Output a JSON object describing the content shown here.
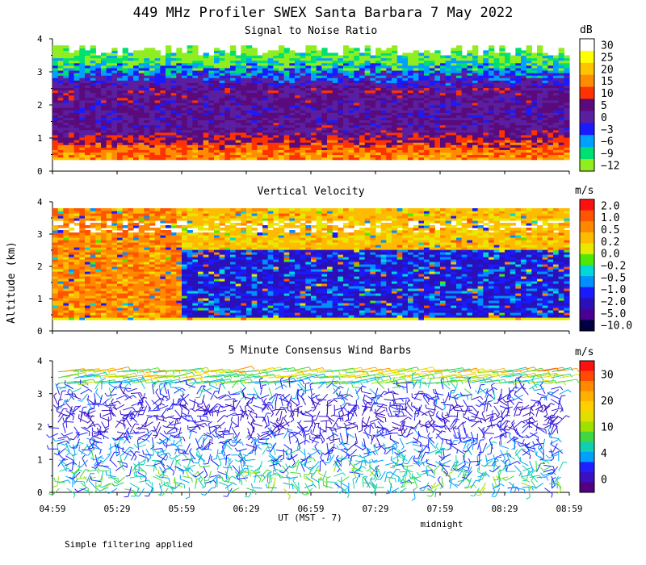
{
  "figure": {
    "title": "449 MHz Profiler SWEX Santa Barbara  7 May 2022",
    "ylabel": "Altitude (km)",
    "xlabel": "UT  (MST - 7)",
    "x_ticks": [
      "04:59",
      "05:29",
      "05:59",
      "06:29",
      "06:59",
      "07:29",
      "07:59",
      "08:29",
      "08:59"
    ],
    "midnight_label": "midnight",
    "footnote": "Simple filtering applied"
  },
  "chart_data": [
    {
      "type": "heatmap",
      "title": "Signal to Noise Ratio",
      "units": "dB",
      "y_ticks": [
        "0",
        "1",
        "2",
        "3",
        "4"
      ],
      "ylim": [
        0,
        4
      ],
      "data_range_km": [
        0.35,
        3.8
      ],
      "x_range": [
        "04:59",
        "08:59"
      ],
      "colorbar": {
        "labels": [
          "30",
          "25",
          "20",
          "15",
          "10",
          "5",
          "0",
          "−3",
          "−6",
          "−9",
          "−12"
        ],
        "colors": [
          "#ffffff",
          "#ffff00",
          "#ffc400",
          "#ff8c00",
          "#ff3300",
          "#5a0a7a",
          "#5a1fa0",
          "#1a1aff",
          "#00a0ff",
          "#00e070",
          "#90ee20"
        ]
      },
      "profile": [
        {
          "alt_km": 0.4,
          "value_db": 18
        },
        {
          "alt_km": 0.8,
          "value_db": 12
        },
        {
          "alt_km": 1.2,
          "value_db": 5
        },
        {
          "alt_km": 1.8,
          "value_db": 4
        },
        {
          "alt_km": 2.4,
          "value_db": 6
        },
        {
          "alt_km": 2.9,
          "value_db": -3
        },
        {
          "alt_km": 3.3,
          "value_db": -9
        },
        {
          "alt_km": 3.7,
          "value_db": -12
        }
      ]
    },
    {
      "type": "heatmap",
      "title": "Vertical Velocity",
      "units": "m/s",
      "y_ticks": [
        "0",
        "1",
        "2",
        "3",
        "4"
      ],
      "ylim": [
        0,
        4
      ],
      "data_range_km": [
        0.35,
        3.8
      ],
      "x_range": [
        "04:59",
        "08:59"
      ],
      "colorbar": {
        "labels": [
          "2.0",
          "1.0",
          "0.5",
          "0.2",
          "0.0",
          "−0.2",
          "−0.5",
          "−1.0",
          "−2.0",
          "−5.0",
          "−10.0"
        ],
        "colors": [
          "#ff1010",
          "#ff5500",
          "#ff8800",
          "#ffbb00",
          "#e8e800",
          "#50e800",
          "#00d8d8",
          "#0090ff",
          "#1a1aff",
          "#2a10b8",
          "#4a0090",
          "#000040"
        ]
      },
      "regime": [
        {
          "time": "04:59-05:59",
          "alt_km": "0.4-3.8",
          "value_ms": 0.5
        },
        {
          "time": "05:59-08:59",
          "alt_km": "0.4-2.5",
          "value_ms": -2.0
        },
        {
          "time": "05:59-08:59",
          "alt_km": "2.5-3.8",
          "value_ms": 0.2
        }
      ]
    },
    {
      "type": "barbs",
      "title": "5 Minute Consensus Wind Barbs",
      "units": "m/s",
      "y_ticks": [
        "0",
        "1",
        "2",
        "3",
        "4"
      ],
      "ylim": [
        0,
        4
      ],
      "x_range": [
        "04:59",
        "08:59"
      ],
      "colorbar": {
        "labels": [
          "30",
          "20",
          "10",
          "4",
          "0"
        ],
        "colors": [
          "#ff1010",
          "#ff4a00",
          "#ff8a00",
          "#ffb000",
          "#ffd000",
          "#e0e000",
          "#a0e000",
          "#40d840",
          "#10d0b0",
          "#00a0ff",
          "#2020ff",
          "#3a10c0",
          "#500080"
        ]
      },
      "wind_profile": [
        {
          "alt_km": 0.5,
          "speed_ms": 10
        },
        {
          "alt_km": 1.0,
          "speed_ms": 8
        },
        {
          "alt_km": 1.5,
          "speed_ms": 6
        },
        {
          "alt_km": 2.0,
          "speed_ms": 3
        },
        {
          "alt_km": 2.5,
          "speed_ms": 3
        },
        {
          "alt_km": 3.0,
          "speed_ms": 5
        },
        {
          "alt_km": 3.5,
          "speed_ms": 15
        },
        {
          "alt_km": 3.8,
          "speed_ms": 20
        }
      ]
    }
  ]
}
